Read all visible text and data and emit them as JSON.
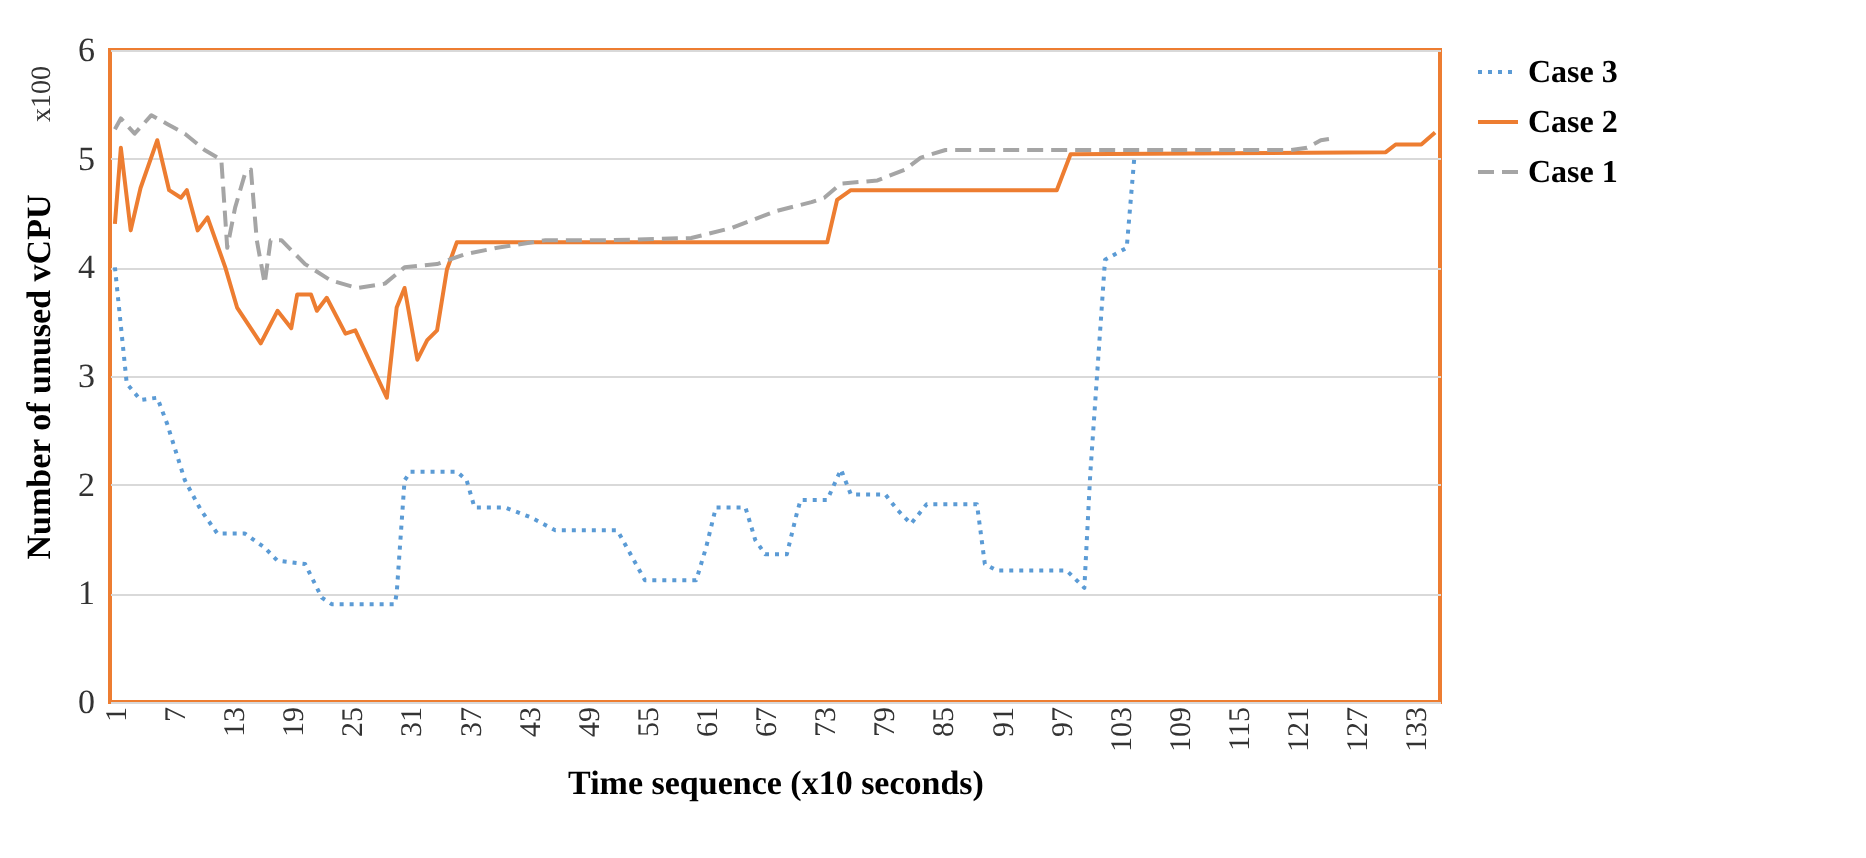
{
  "chart_data": {
    "type": "line",
    "xlabel": "Time sequence (x10 seconds)",
    "ylabel": "Number  of unused vCPU",
    "annotations": [
      "x100"
    ],
    "xlim": [
      0.5,
      135.5
    ],
    "xticks": [
      1,
      7,
      13,
      19,
      25,
      31,
      37,
      43,
      49,
      55,
      61,
      67,
      73,
      79,
      85,
      91,
      97,
      103,
      109,
      115,
      121,
      127,
      133
    ],
    "ylim": [
      0,
      6
    ],
    "yticks": [
      0,
      1,
      2,
      3,
      4,
      5,
      6
    ],
    "grid": "y",
    "legend": "right",
    "series": [
      {
        "name": "Case 3",
        "color": "#5b9bd5",
        "line_style": "dotted",
        "x": [
          1,
          2.2,
          3.6,
          5.3,
          6.3,
          8.1,
          9.7,
          11.4,
          14.2,
          16.2,
          17.5,
          20.3,
          22,
          23,
          29.4,
          29.6,
          30.4,
          31,
          35.7,
          36.7,
          37.5,
          40.6,
          43.2,
          45.7,
          52,
          54.8,
          60,
          61,
          62,
          65,
          66,
          67,
          69.2,
          70.2,
          70.6,
          73.3,
          74.7,
          75.7,
          79.2,
          80.4,
          81.8,
          83.4,
          88.5,
          89.3,
          90.5,
          97.6,
          99.4,
          100,
          101.5,
          103.7,
          104.5
        ],
        "values": [
          4.0,
          2.93,
          2.78,
          2.8,
          2.56,
          2.04,
          1.77,
          1.55,
          1.55,
          1.42,
          1.3,
          1.27,
          0.96,
          0.9,
          0.9,
          1.0,
          2.04,
          2.12,
          2.12,
          2.04,
          1.79,
          1.79,
          1.7,
          1.58,
          1.58,
          1.12,
          1.12,
          1.42,
          1.79,
          1.79,
          1.49,
          1.36,
          1.36,
          1.73,
          1.86,
          1.86,
          2.14,
          1.91,
          1.91,
          1.77,
          1.64,
          1.82,
          1.82,
          1.27,
          1.21,
          1.21,
          1.05,
          2.1,
          4.07,
          4.18,
          5.04
        ]
      },
      {
        "name": "Case 2",
        "color": "#ed7d31",
        "line_style": "solid",
        "x": [
          1,
          1.6,
          2.6,
          3.6,
          5.3,
          6.5,
          7.7,
          8.3,
          9.4,
          10.4,
          12.2,
          13.4,
          15.8,
          17.5,
          18.9,
          19.5,
          20.9,
          21.5,
          22.5,
          24.4,
          25.4,
          28.6,
          29.6,
          30.4,
          31.7,
          32.7,
          33.7,
          34.7,
          35.7,
          73.3,
          74.3,
          75.7,
          96.6,
          98,
          130,
          131,
          133.6,
          135
        ],
        "values": [
          4.4,
          5.1,
          4.34,
          4.73,
          5.17,
          4.71,
          4.64,
          4.71,
          4.34,
          4.46,
          4.0,
          3.63,
          3.3,
          3.6,
          3.44,
          3.75,
          3.75,
          3.6,
          3.72,
          3.39,
          3.42,
          2.8,
          3.63,
          3.81,
          3.15,
          3.33,
          3.42,
          3.98,
          4.23,
          4.23,
          4.62,
          4.71,
          4.71,
          5.04,
          5.06,
          5.13,
          5.13,
          5.24
        ]
      },
      {
        "name": "Case 1",
        "color": "#a5a5a5",
        "line_style": "dashed",
        "x": [
          1,
          1.6,
          3,
          4.7,
          6.3,
          8.1,
          10.1,
          11.8,
          12.4,
          13.2,
          14.2,
          14.8,
          15.4,
          16.2,
          16.8,
          17.9,
          20.3,
          22.9,
          25.6,
          28.4,
          30.4,
          33.7,
          36.5,
          39.8,
          44.7,
          51.4,
          59.5,
          63.5,
          68.2,
          71.7,
          73,
          74.7,
          78.4,
          81.2,
          82.8,
          85.3,
          120.4,
          122,
          123.4,
          124.8
        ],
        "values": [
          5.27,
          5.37,
          5.23,
          5.4,
          5.32,
          5.23,
          5.08,
          4.99,
          4.18,
          4.55,
          4.86,
          4.9,
          4.25,
          3.85,
          4.25,
          4.25,
          4.03,
          3.88,
          3.81,
          3.85,
          4.0,
          4.03,
          4.12,
          4.18,
          4.25,
          4.25,
          4.27,
          4.36,
          4.52,
          4.6,
          4.64,
          4.77,
          4.8,
          4.9,
          5.01,
          5.08,
          5.08,
          5.1,
          5.17,
          5.19
        ]
      }
    ]
  }
}
